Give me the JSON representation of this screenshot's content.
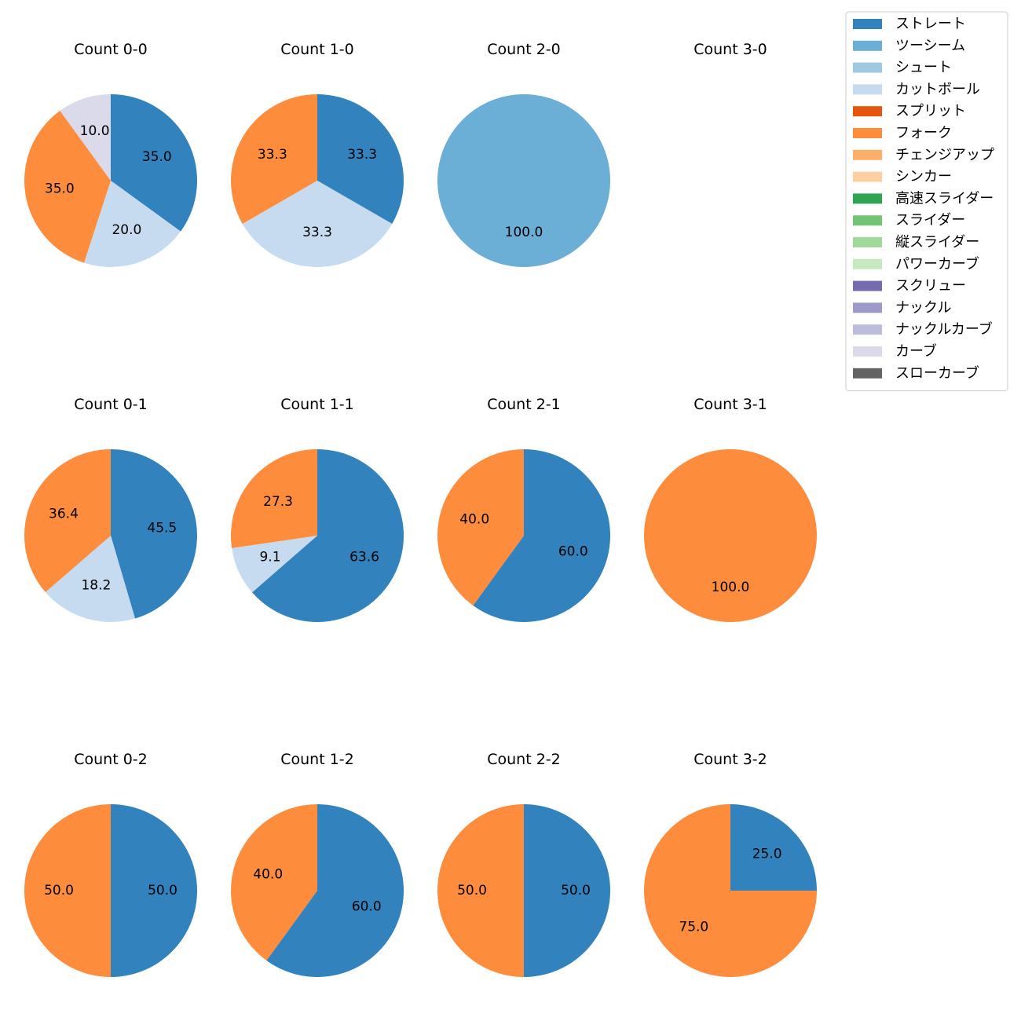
{
  "chart_data": {
    "type": "pie",
    "legend": {
      "placement": "top-right",
      "entries": [
        {
          "name": "ストレート",
          "color": "#3182bd"
        },
        {
          "name": "ツーシーム",
          "color": "#6baed6"
        },
        {
          "name": "シュート",
          "color": "#9ecae1"
        },
        {
          "name": "カットボール",
          "color": "#c6dbef"
        },
        {
          "name": "スプリット",
          "color": "#e6550d"
        },
        {
          "name": "フォーク",
          "color": "#fd8d3c"
        },
        {
          "name": "チェンジアップ",
          "color": "#fdae6b"
        },
        {
          "name": "シンカー",
          "color": "#fdd0a2"
        },
        {
          "name": "高速スライダー",
          "color": "#31a354"
        },
        {
          "name": "スライダー",
          "color": "#74c476"
        },
        {
          "name": "縦スライダー",
          "color": "#a1d99b"
        },
        {
          "name": "パワーカーブ",
          "color": "#c7e9c0"
        },
        {
          "name": "スクリュー",
          "color": "#756bb1"
        },
        {
          "name": "ナックル",
          "color": "#9e9ac8"
        },
        {
          "name": "ナックルカーブ",
          "color": "#bcbddc"
        },
        {
          "name": "カーブ",
          "color": "#dadaeb"
        },
        {
          "name": "スローカーブ",
          "color": "#636363"
        }
      ]
    },
    "charts": [
      {
        "title": "Count 0-0",
        "slices": [
          {
            "pitch": "ストレート",
            "value": 35.0,
            "label": "35.0"
          },
          {
            "pitch": "カットボール",
            "value": 20.0,
            "label": "20.0"
          },
          {
            "pitch": "フォーク",
            "value": 35.0,
            "label": "35.0"
          },
          {
            "pitch": "カーブ",
            "value": 10.0,
            "label": "10.0"
          }
        ]
      },
      {
        "title": "Count 1-0",
        "slices": [
          {
            "pitch": "ストレート",
            "value": 33.3,
            "label": "33.3"
          },
          {
            "pitch": "カットボール",
            "value": 33.3,
            "label": "33.3"
          },
          {
            "pitch": "フォーク",
            "value": 33.3,
            "label": "33.3"
          }
        ]
      },
      {
        "title": "Count 2-0",
        "slices": [
          {
            "pitch": "ツーシーム",
            "value": 100.0,
            "label": "100.0"
          }
        ]
      },
      {
        "title": "Count 3-0",
        "slices": []
      },
      {
        "title": "Count 0-1",
        "slices": [
          {
            "pitch": "ストレート",
            "value": 45.5,
            "label": "45.5"
          },
          {
            "pitch": "カットボール",
            "value": 18.2,
            "label": "18.2"
          },
          {
            "pitch": "フォーク",
            "value": 36.4,
            "label": "36.4"
          }
        ]
      },
      {
        "title": "Count 1-1",
        "slices": [
          {
            "pitch": "ストレート",
            "value": 63.6,
            "label": "63.6"
          },
          {
            "pitch": "カットボール",
            "value": 9.1,
            "label": "9.1"
          },
          {
            "pitch": "フォーク",
            "value": 27.3,
            "label": "27.3"
          }
        ]
      },
      {
        "title": "Count 2-1",
        "slices": [
          {
            "pitch": "ストレート",
            "value": 60.0,
            "label": "60.0"
          },
          {
            "pitch": "フォーク",
            "value": 40.0,
            "label": "40.0"
          }
        ]
      },
      {
        "title": "Count 3-1",
        "slices": [
          {
            "pitch": "フォーク",
            "value": 100.0,
            "label": "100.0"
          }
        ]
      },
      {
        "title": "Count 0-2",
        "slices": [
          {
            "pitch": "ストレート",
            "value": 50.0,
            "label": "50.0"
          },
          {
            "pitch": "フォーク",
            "value": 50.0,
            "label": "50.0"
          }
        ]
      },
      {
        "title": "Count 1-2",
        "slices": [
          {
            "pitch": "ストレート",
            "value": 60.0,
            "label": "60.0"
          },
          {
            "pitch": "フォーク",
            "value": 40.0,
            "label": "40.0"
          }
        ]
      },
      {
        "title": "Count 2-2",
        "slices": [
          {
            "pitch": "ストレート",
            "value": 50.0,
            "label": "50.0"
          },
          {
            "pitch": "フォーク",
            "value": 50.0,
            "label": "50.0"
          }
        ]
      },
      {
        "title": "Count 3-2",
        "slices": [
          {
            "pitch": "ストレート",
            "value": 25.0,
            "label": "25.0"
          },
          {
            "pitch": "フォーク",
            "value": 75.0,
            "label": "75.0"
          }
        ]
      }
    ]
  }
}
